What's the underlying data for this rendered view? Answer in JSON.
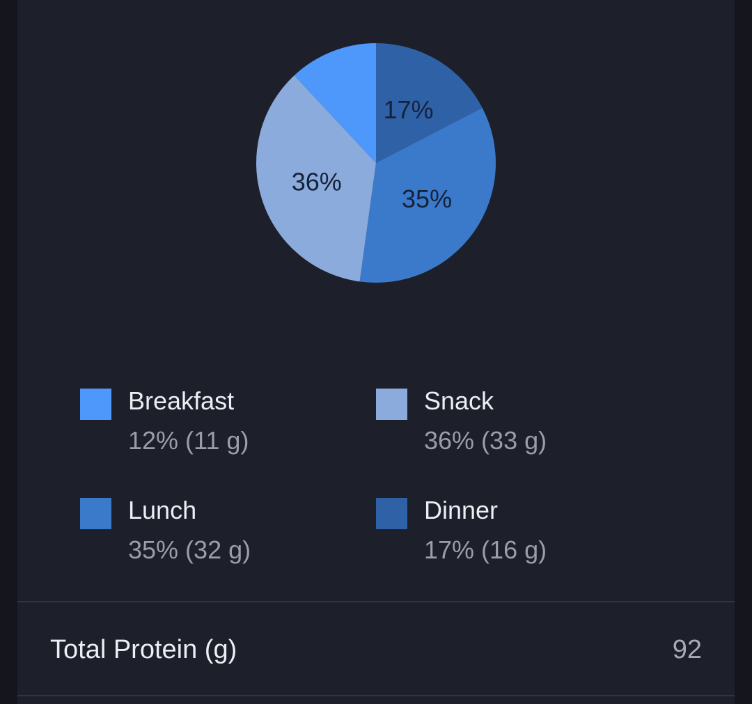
{
  "chart_data": {
    "type": "pie",
    "slices": [
      {
        "name": "Breakfast",
        "percent": 12,
        "grams": 11,
        "color": "#4f98fb",
        "slice_label": "",
        "legend_value": "12% (11 g)"
      },
      {
        "name": "Snack",
        "percent": 36,
        "grams": 33,
        "color": "#8aabdb",
        "slice_label": "36%",
        "legend_value": "36% (33 g)"
      },
      {
        "name": "Lunch",
        "percent": 35,
        "grams": 32,
        "color": "#3b7acb",
        "slice_label": "35%",
        "legend_value": "35% (32 g)"
      },
      {
        "name": "Dinner",
        "percent": 17,
        "grams": 16,
        "color": "#2f61a7",
        "slice_label": "17%",
        "legend_value": "17% (16 g)"
      }
    ],
    "legend_placement": "bottom"
  },
  "summary": {
    "label": "Total Protein (g)",
    "value": "92"
  }
}
